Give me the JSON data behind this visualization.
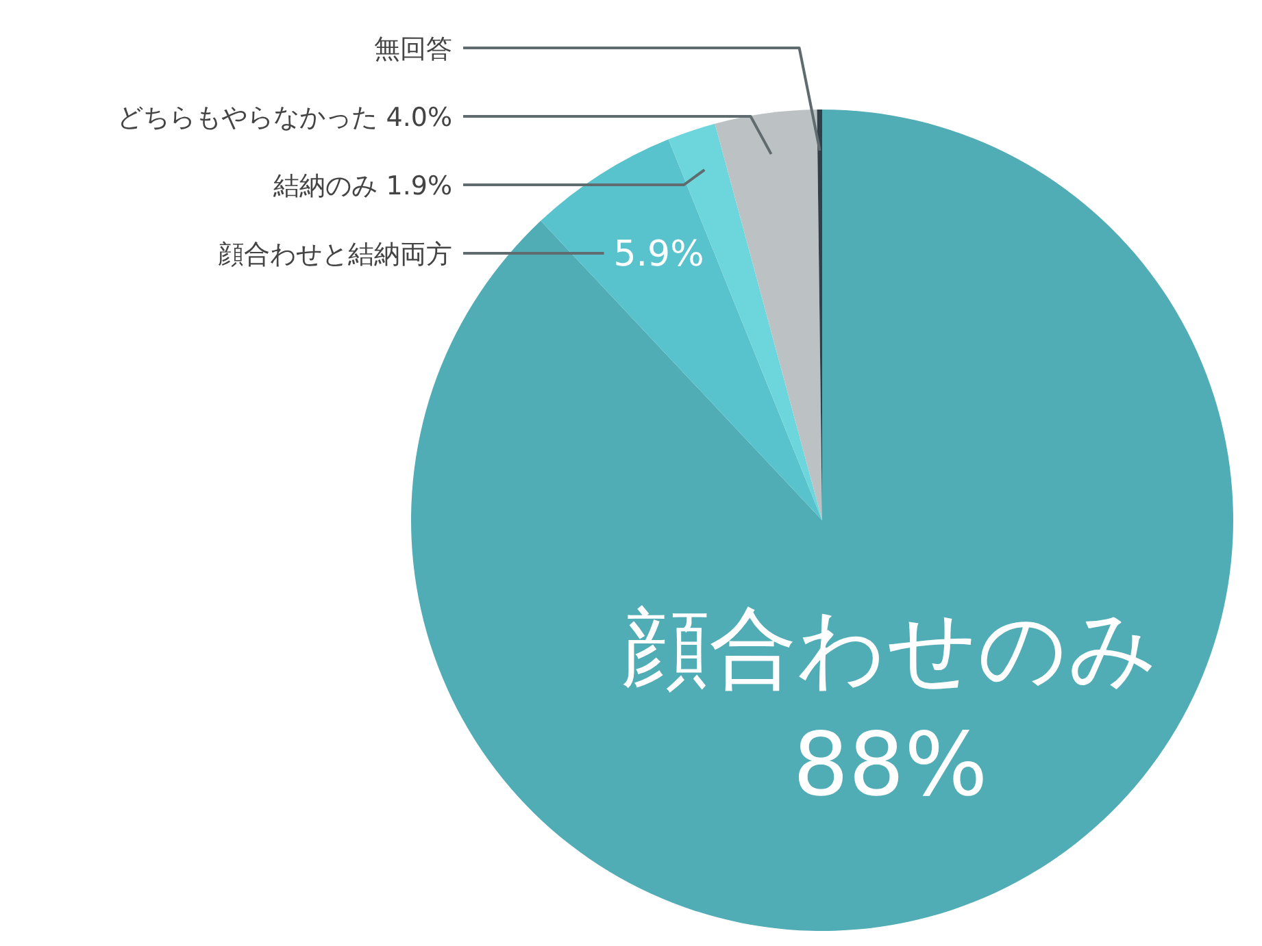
{
  "chart_data": {
    "type": "pie",
    "categories": [
      "顔合わせのみ",
      "顔合わせと結納両方",
      "結納のみ",
      "どちらもやらなかった",
      "無回答"
    ],
    "values": [
      88,
      5.9,
      1.9,
      4.0,
      0.2
    ],
    "value_labels": [
      "88%",
      "5.9%",
      "1.9%",
      "4.0%",
      null
    ],
    "colors": [
      "#50acb5",
      "#58c3cc",
      "#6dd5dc",
      "#bcc2c4",
      "#333f48"
    ]
  }
}
